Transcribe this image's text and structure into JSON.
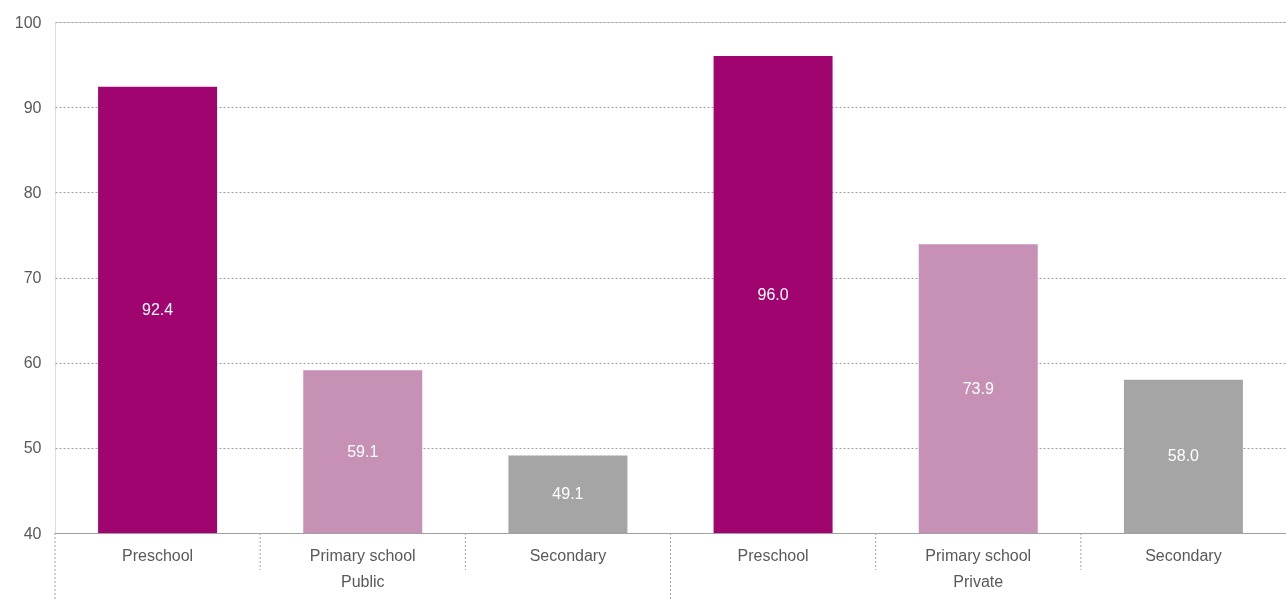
{
  "chart_data": {
    "type": "bar",
    "categories": [
      "Preschool",
      "Primary school",
      "Secondary",
      "Preschool",
      "Primary school",
      "Secondary"
    ],
    "values": [
      92.4,
      59.1,
      49.1,
      96.0,
      73.9,
      58.0
    ],
    "colors": [
      "#a0056f",
      "#c691b5",
      "#a5a5a5",
      "#a0056f",
      "#c691b5",
      "#a5a5a5"
    ],
    "ylim": [
      40,
      100
    ],
    "yticks": [
      40,
      50,
      60,
      70,
      80,
      90,
      100
    ],
    "grid": "y",
    "value_labels": [
      "92.4",
      "59.1",
      "49.1",
      "96.0",
      "73.9",
      "58.0"
    ],
    "annotations": [
      "Public",
      "Private"
    ]
  }
}
